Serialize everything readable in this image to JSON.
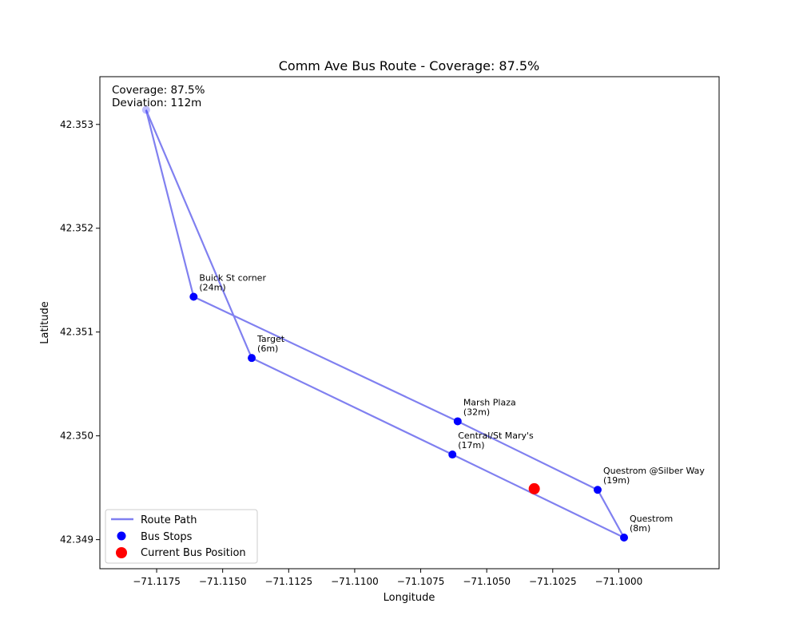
{
  "chart_data": {
    "type": "line",
    "title": "Comm Ave Bus Route - Coverage: 87.5%",
    "xlabel": "Longitude",
    "ylabel": "Latitude",
    "xlim": [
      -71.11965,
      -71.0962
    ],
    "ylim": [
      42.34872,
      42.35346
    ],
    "xticks": [
      -71.1175,
      -71.115,
      -71.1125,
      -71.11,
      -71.1075,
      -71.105,
      -71.1025,
      -71.1
    ],
    "xtick_labels": [
      "−71.1175",
      "−71.1150",
      "−71.1125",
      "−71.1100",
      "−71.1075",
      "−71.1050",
      "−71.1025",
      "−71.1000"
    ],
    "yticks": [
      42.349,
      42.35,
      42.351,
      42.352,
      42.353
    ],
    "ytick_labels": [
      "42.349",
      "42.350",
      "42.351",
      "42.352",
      "42.353"
    ],
    "grid": false,
    "legend_position": "lower-left",
    "legend": [
      {
        "label": "Route Path",
        "kind": "line"
      },
      {
        "label": "Bus Stops",
        "kind": "dot"
      },
      {
        "label": "Current Bus Position",
        "kind": "bigdot"
      }
    ],
    "stats": {
      "coverage": "Coverage: 87.5%",
      "deviation": "Deviation: 112m"
    },
    "colors": {
      "route": "#8080f0",
      "stop": "#0000ff",
      "current": "#ff0000"
    },
    "route_path": {
      "name": "Route Path",
      "points": [
        [
          -71.1179,
          42.35314
        ],
        [
          -71.1139,
          42.35075
        ],
        [
          -71.1063,
          42.34982
        ],
        [
          -71.0998,
          42.34902
        ],
        [
          -71.1008,
          42.34948
        ],
        [
          -71.1061,
          42.35014
        ],
        [
          -71.1161,
          42.35134
        ],
        [
          -71.1179,
          42.35314
        ]
      ]
    },
    "stops": [
      {
        "lon": -71.1179,
        "lat": 42.35314,
        "name": "",
        "dist": "",
        "faded": true
      },
      {
        "lon": -71.1161,
        "lat": 42.35134,
        "name": "Buick St corner",
        "dist": "(24m)"
      },
      {
        "lon": -71.1139,
        "lat": 42.35075,
        "name": "Target",
        "dist": "(6m)"
      },
      {
        "lon": -71.1061,
        "lat": 42.35014,
        "name": "Marsh Plaza",
        "dist": "(32m)"
      },
      {
        "lon": -71.1063,
        "lat": 42.34982,
        "name": "Central/St Mary's",
        "dist": "(17m)"
      },
      {
        "lon": -71.1008,
        "lat": 42.34948,
        "name": "Questrom @Silber Way",
        "dist": "(19m)"
      },
      {
        "lon": -71.0998,
        "lat": 42.34902,
        "name": "Questrom",
        "dist": "(8m)"
      }
    ],
    "current_position": {
      "lon": -71.1032,
      "lat": 42.34949,
      "name": "Current Bus Position"
    }
  }
}
